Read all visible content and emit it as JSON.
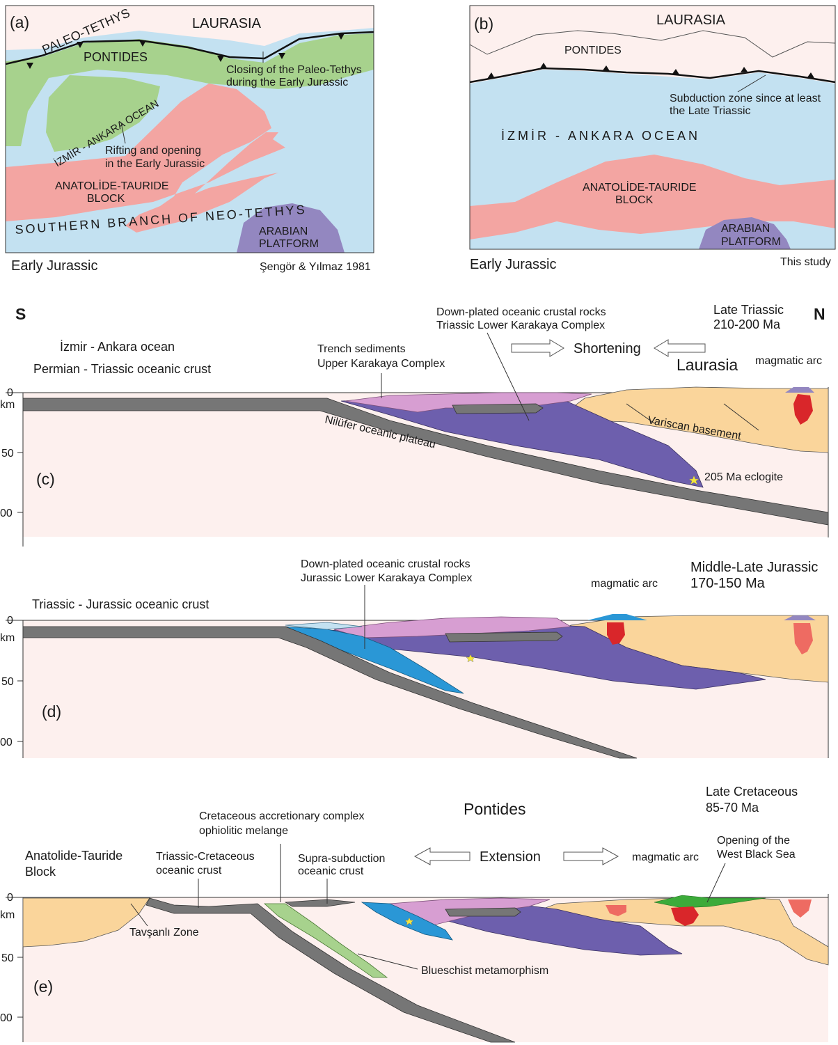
{
  "panel_a": {
    "label": "(a)",
    "laurasia": "LAURASIA",
    "paleo_tethys": "PALEO-TETHYS",
    "pontides": "PONTIDES",
    "closing_1": "Closing of the Paleo-Tethys",
    "closing_2": "during the Early Jurassic",
    "izmir_ocean": "İZMİR - ANKARA OCEAN",
    "rifting_1": "Rifting and opening",
    "rifting_2": "in the Early Jurassic",
    "atb_1": "ANATOLİDE-TAURIDE",
    "atb_2": "BLOCK",
    "neo_tethys": "SOUTHERN BRANCH OF NEO-TETHYS",
    "arabian_1": "ARABIAN",
    "arabian_2": "PLATFORM",
    "age": "Early Jurassic",
    "source": "Şengör & Yılmaz 1981"
  },
  "panel_b": {
    "label": "(b)",
    "laurasia": "LAURASIA",
    "pontides": "PONTIDES",
    "subduction_1": "Subduction zone since at least",
    "subduction_2": "the Late Triassic",
    "ocean": "İZMİR - ANKARA OCEAN",
    "atb_1": "ANATOLİDE-TAURIDE",
    "atb_2": "BLOCK",
    "arabian_1": "ARABIAN",
    "arabian_2": "PLATFORM",
    "age": "Early Jurassic",
    "source": "This study"
  },
  "panel_c": {
    "label": "(c)",
    "south": "S",
    "north": "N",
    "age_1": "Late Triassic",
    "age_2": "210-200 Ma",
    "ocean": "İzmir - Ankara ocean",
    "crust": "Permian - Triassic oceanic crust",
    "trench_1": "Trench sediments",
    "trench_2": "Upper Karakaya Complex",
    "downplated_1": "Down-plated oceanic crustal rocks",
    "downplated_2": "Triassic Lower Karakaya Complex",
    "shortening": "Shortening",
    "laurasia": "Laurasia",
    "magmatic_arc": "magmatic arc",
    "variscan": "Variscan basement",
    "plateau": "Nilüfer oceanic plateau",
    "eclogite": "205 Ma eclogite",
    "ticks": [
      "0",
      "km",
      "50",
      "00"
    ]
  },
  "panel_d": {
    "label": "(d)",
    "downplated_1": "Down-plated oceanic crustal rocks",
    "downplated_2": "Jurassic Lower Karakaya Complex",
    "age_1": "Middle-Late Jurassic",
    "age_2": "170-150 Ma",
    "magmatic_arc": "magmatic arc",
    "crust": "Triassic - Jurassic oceanic crust",
    "ticks": [
      "0",
      "km",
      "50",
      "00"
    ]
  },
  "panel_e": {
    "label": "(e)",
    "age_1": "Late Cretaceous",
    "age_2": "85-70 Ma",
    "pontides": "Pontides",
    "accretionary_1": "Cretaceous accretionary complex",
    "accretionary_2": "ophiolitic melange",
    "atb_1": "Anatolide-Tauride",
    "atb_2": "Block",
    "tric_1": "Triassic-Cretaceous",
    "tric_2": "oceanic crust",
    "supra_1": "Supra-subduction",
    "supra_2": "oceanic crust",
    "extension": "Extension",
    "magmatic_arc": "magmatic arc",
    "wbs_1": "Opening of the",
    "wbs_2": "West Black Sea",
    "tavsanli": "Tavşanlı Zone",
    "blueschist": "Blueschist metamorphism",
    "ticks": [
      "0",
      "km",
      "50",
      "00"
    ]
  },
  "colors": {
    "ocean": "#c3e1f1",
    "laurasia_bg": "#fdf0ee",
    "pontides_green": "#a7d28d",
    "atb_pink": "#f3a5a2",
    "arabian": "#9387c0",
    "basement": "#fad59b",
    "mantle": "#fdf0ee",
    "slab": "#767676",
    "purple": "#6d5fad",
    "pink": "#d79ed2",
    "blue": "#2a97d6",
    "red": "#d9262a",
    "green": "#3cab3a"
  }
}
